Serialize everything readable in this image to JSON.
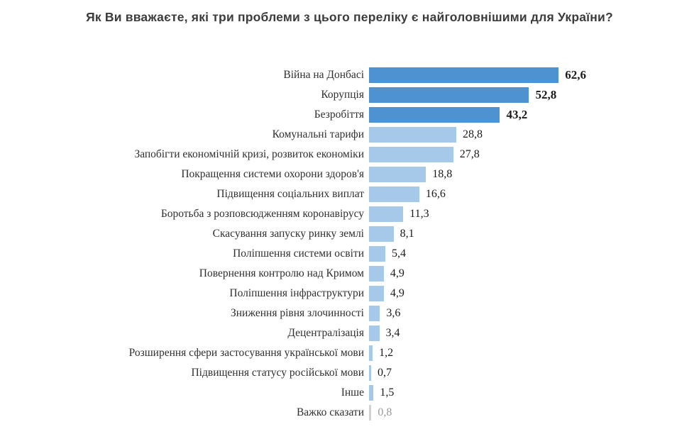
{
  "chart_data": {
    "type": "bar",
    "orientation": "horizontal",
    "title": "Як Ви вважаєте, які три проблеми з цього переліку є найголовнішими для України?",
    "xlabel": "",
    "ylabel": "",
    "xlim": [
      0,
      70
    ],
    "grid": false,
    "legend": false,
    "value_labels_position": "end-of-bar",
    "decimal_separator": ",",
    "categories": [
      "Війна на Донбасі",
      "Корупція",
      "Безробіття",
      "Комунальні тарифи",
      "Запобігти економічній кризі, розвиток економіки",
      "Покращення системи охорони здоров'я",
      "Підвищення соціальних виплат",
      "Боротьба з розповсюдженням коронавірусу",
      "Скасування запуску ринку землі",
      "Поліпшення системи освіти",
      "Повернення контролю над Кримом",
      "Поліпшення інфраструктури",
      "Зниження рівня злочинності",
      "Децентралізація",
      "Розширення сфери застосування української мови",
      "Підвищення статусу російської мови",
      "Інше",
      "Важко сказати"
    ],
    "values": [
      62.6,
      52.8,
      43.2,
      28.8,
      27.8,
      18.8,
      16.6,
      11.3,
      8.1,
      5.4,
      4.9,
      4.9,
      3.6,
      3.4,
      1.2,
      0.7,
      1.5,
      0.8
    ],
    "value_labels": [
      "62,6",
      "52,8",
      "43,2",
      "28,8",
      "27,8",
      "18,8",
      "16,6",
      "11,3",
      "8,1",
      "5,4",
      "4,9",
      "4,9",
      "3,6",
      "3,4",
      "1,2",
      "0,7",
      "1,5",
      "0,8"
    ],
    "bar_styles": [
      "dark",
      "dark",
      "dark",
      "light",
      "light",
      "light",
      "light",
      "light",
      "light",
      "light",
      "light",
      "light",
      "light",
      "light",
      "light",
      "light",
      "light",
      "gray"
    ],
    "colors": {
      "dark_bar": "#4e92d2",
      "light_bar": "#a6c9e9",
      "gray_bar": "#d2d2d2",
      "title_text": "#3c3c3c",
      "category_text": "#2f2f2f",
      "value_text": "#1b1b1b",
      "value_text_muted": "#9a9a9a"
    }
  }
}
